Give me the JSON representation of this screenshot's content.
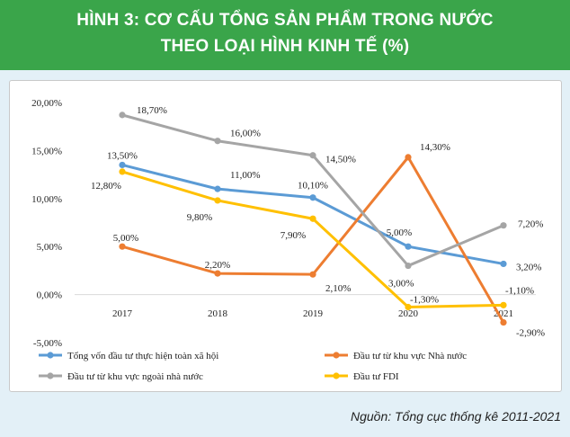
{
  "header": {
    "title_line1": "HÌNH 3: CƠ CẤU TỔNG SẢN PHẨM TRONG NƯỚC",
    "title_line2": "THEO LOẠI HÌNH KINH TẾ (%)",
    "background_color": "#3aa54a"
  },
  "source": "Nguồn: Tổng cục thống kê 2011-2021",
  "chart_data": {
    "type": "line",
    "categories": [
      "2017",
      "2018",
      "2019",
      "2020",
      "2021"
    ],
    "ylim": [
      -5,
      20
    ],
    "yticks": [
      "20,00%",
      "15,00%",
      "10,00%",
      "5,00%",
      "0,00%",
      "-5,00%"
    ],
    "ytick_values": [
      20,
      15,
      10,
      5,
      0,
      -5
    ],
    "grid": false,
    "legend_position": "bottom",
    "series": [
      {
        "name": "Tổng vốn đầu tư thực hiện toàn xã  hội",
        "color": "#5b9bd5",
        "values": [
          13.5,
          11.0,
          10.1,
          5.0,
          3.2
        ],
        "labels": [
          "13,50%",
          "11,00%",
          "10,10%",
          "5,00%",
          "3,20%"
        ]
      },
      {
        "name": "Đầu tư từ khu vực Nhà nước",
        "color": "#ed7d31",
        "values": [
          5.0,
          2.2,
          2.1,
          14.3,
          -2.9
        ],
        "labels": [
          "5,00%",
          "2,20%",
          "2,10%",
          "14,30%",
          "-2,90%"
        ]
      },
      {
        "name": "Đầu tư từ khu vực ngoài nhà nước",
        "color": "#a5a5a5",
        "values": [
          18.7,
          16.0,
          14.5,
          3.0,
          7.2
        ],
        "labels": [
          "18,70%",
          "16,00%",
          "14,50%",
          "3,00%",
          "7,20%"
        ]
      },
      {
        "name": "Đầu tư FDI",
        "color": "#ffc000",
        "values": [
          12.8,
          9.8,
          7.9,
          -1.3,
          -1.1
        ],
        "labels": [
          "12,80%",
          "9,80%",
          "7,90%",
          "-1,30%",
          "-1,10%"
        ]
      }
    ]
  }
}
